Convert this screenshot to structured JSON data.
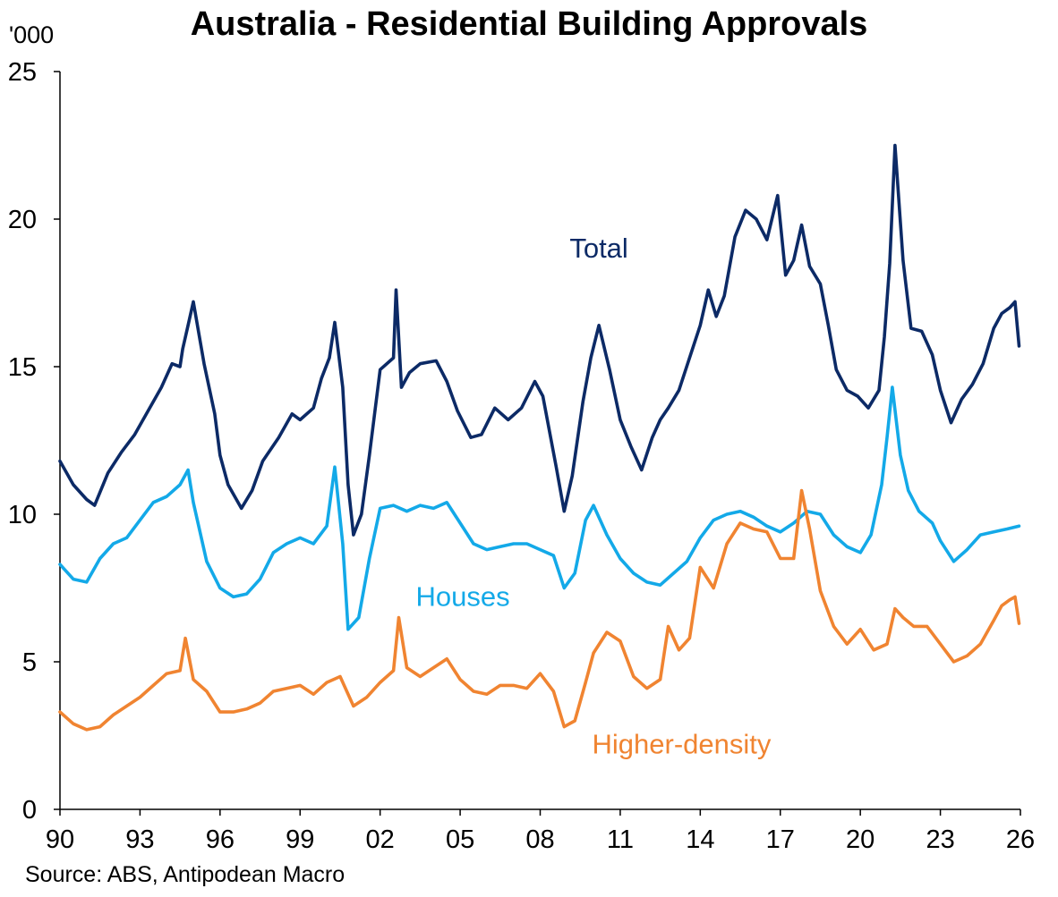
{
  "title": "Australia - Residential Building Approvals",
  "unit_label": "'000",
  "source": "Source: ABS, Antipodean Macro",
  "colors": {
    "Total": "#0c2a66",
    "Houses": "#13a9e8",
    "Higher-density": "#f08431",
    "axis": "#000000"
  },
  "chart_data": {
    "type": "line",
    "title": "Australia - Residential Building Approvals",
    "ylabel": "'000",
    "xlabel": "",
    "ylim": [
      0,
      25
    ],
    "xlim": [
      1990,
      2026
    ],
    "yticks": [
      "0",
      "5",
      "10",
      "15",
      "20",
      "25"
    ],
    "xticks": [
      "90",
      "93",
      "96",
      "99",
      "02",
      "05",
      "08",
      "11",
      "14",
      "17",
      "20",
      "23",
      "26"
    ],
    "series": [
      {
        "name": "Total",
        "x": [
          1990.0,
          1990.5,
          1991.0,
          1991.3,
          1991.8,
          1992.3,
          1992.8,
          1993.3,
          1993.8,
          1994.2,
          1994.5,
          1994.6,
          1994.8,
          1995.0,
          1995.4,
          1995.8,
          1996.0,
          1996.3,
          1996.8,
          1997.2,
          1997.6,
          1998.2,
          1998.7,
          1999.0,
          1999.5,
          1999.8,
          2000.1,
          2000.3,
          2000.6,
          2000.8,
          2001.0,
          2001.3,
          2001.6,
          2002.0,
          2002.5,
          2002.6,
          2002.8,
          2003.1,
          2003.5,
          2004.1,
          2004.5,
          2004.9,
          2005.4,
          2005.8,
          2006.3,
          2006.8,
          2007.3,
          2007.8,
          2008.1,
          2008.6,
          2008.9,
          2009.2,
          2009.6,
          2009.9,
          2010.2,
          2010.6,
          2011.0,
          2011.4,
          2011.8,
          2012.2,
          2012.5,
          2012.8,
          2013.2,
          2013.6,
          2014.0,
          2014.3,
          2014.6,
          2014.9,
          2015.3,
          2015.7,
          2016.1,
          2016.5,
          2016.9,
          2017.2,
          2017.5,
          2017.8,
          2018.1,
          2018.5,
          2018.8,
          2019.1,
          2019.5,
          2019.9,
          2020.3,
          2020.7,
          2020.9,
          2021.1,
          2021.3,
          2021.6,
          2021.9,
          2022.3,
          2022.7,
          2023.0,
          2023.4,
          2023.8,
          2024.2,
          2024.6,
          2025.0,
          2025.3,
          2025.6,
          2025.8,
          2025.95
        ],
        "values": [
          11.8,
          11.0,
          10.5,
          10.3,
          11.4,
          12.1,
          12.7,
          13.5,
          14.3,
          15.1,
          15.0,
          15.6,
          16.4,
          17.2,
          15.1,
          13.4,
          12.0,
          11.0,
          10.2,
          10.8,
          11.8,
          12.6,
          13.4,
          13.2,
          13.6,
          14.6,
          15.3,
          16.5,
          14.3,
          11.0,
          9.3,
          10.0,
          12.0,
          14.9,
          15.3,
          17.6,
          14.3,
          14.8,
          15.1,
          15.2,
          14.5,
          13.5,
          12.6,
          12.7,
          13.6,
          13.2,
          13.6,
          14.5,
          14.0,
          11.6,
          10.1,
          11.3,
          13.8,
          15.3,
          16.4,
          14.9,
          13.2,
          12.3,
          11.5,
          12.6,
          13.2,
          13.6,
          14.2,
          15.3,
          16.4,
          17.6,
          16.7,
          17.4,
          19.4,
          20.3,
          20.0,
          19.3,
          20.8,
          18.1,
          18.6,
          19.8,
          18.4,
          17.8,
          16.4,
          14.9,
          14.2,
          14.0,
          13.6,
          14.2,
          16.0,
          18.5,
          22.5,
          18.6,
          16.3,
          16.2,
          15.4,
          14.2,
          13.1,
          13.9,
          14.4,
          15.1,
          16.3,
          16.8,
          17.0,
          17.2,
          15.7
        ]
      },
      {
        "name": "Houses",
        "x": [
          1990.0,
          1990.5,
          1991.0,
          1991.5,
          1992.0,
          1992.5,
          1993.0,
          1993.5,
          1994.0,
          1994.5,
          1994.8,
          1995.0,
          1995.5,
          1996.0,
          1996.5,
          1997.0,
          1997.5,
          1998.0,
          1998.5,
          1999.0,
          1999.5,
          2000.0,
          2000.3,
          2000.6,
          2000.8,
          2001.2,
          2001.6,
          2002.0,
          2002.5,
          2003.0,
          2003.5,
          2004.0,
          2004.5,
          2005.0,
          2005.5,
          2006.0,
          2006.5,
          2007.0,
          2007.5,
          2008.0,
          2008.5,
          2008.9,
          2009.3,
          2009.7,
          2010.0,
          2010.5,
          2011.0,
          2011.5,
          2012.0,
          2012.5,
          2013.0,
          2013.5,
          2014.0,
          2014.5,
          2015.0,
          2015.5,
          2016.0,
          2016.5,
          2017.0,
          2017.5,
          2018.0,
          2018.5,
          2019.0,
          2019.5,
          2020.0,
          2020.4,
          2020.8,
          2021.0,
          2021.2,
          2021.5,
          2021.8,
          2022.2,
          2022.7,
          2023.0,
          2023.5,
          2024.0,
          2024.5,
          2025.0,
          2025.5,
          2025.95
        ],
        "values": [
          8.3,
          7.8,
          7.7,
          8.5,
          9.0,
          9.2,
          9.8,
          10.4,
          10.6,
          11.0,
          11.5,
          10.4,
          8.4,
          7.5,
          7.2,
          7.3,
          7.8,
          8.7,
          9.0,
          9.2,
          9.0,
          9.6,
          11.6,
          9.0,
          6.1,
          6.5,
          8.5,
          10.2,
          10.3,
          10.1,
          10.3,
          10.2,
          10.4,
          9.7,
          9.0,
          8.8,
          8.9,
          9.0,
          9.0,
          8.8,
          8.6,
          7.5,
          8.0,
          9.8,
          10.3,
          9.3,
          8.5,
          8.0,
          7.7,
          7.6,
          8.0,
          8.4,
          9.2,
          9.8,
          10.0,
          10.1,
          9.9,
          9.6,
          9.4,
          9.7,
          10.1,
          10.0,
          9.3,
          8.9,
          8.7,
          9.3,
          11.0,
          12.6,
          14.3,
          12.0,
          10.8,
          10.1,
          9.7,
          9.1,
          8.4,
          8.8,
          9.3,
          9.4,
          9.5,
          9.6
        ]
      },
      {
        "name": "Higher-density",
        "x": [
          1990.0,
          1990.5,
          1991.0,
          1991.5,
          1992.0,
          1992.5,
          1993.0,
          1993.5,
          1994.0,
          1994.5,
          1994.7,
          1995.0,
          1995.5,
          1996.0,
          1996.5,
          1997.0,
          1997.5,
          1998.0,
          1998.5,
          1999.0,
          1999.5,
          2000.0,
          2000.5,
          2001.0,
          2001.5,
          2002.0,
          2002.5,
          2002.7,
          2003.0,
          2003.5,
          2004.0,
          2004.5,
          2005.0,
          2005.5,
          2006.0,
          2006.5,
          2007.0,
          2007.5,
          2008.0,
          2008.5,
          2008.9,
          2009.3,
          2009.7,
          2010.0,
          2010.5,
          2011.0,
          2011.5,
          2012.0,
          2012.5,
          2012.8,
          2013.2,
          2013.6,
          2014.0,
          2014.5,
          2015.0,
          2015.5,
          2016.0,
          2016.5,
          2017.0,
          2017.5,
          2017.8,
          2018.1,
          2018.5,
          2019.0,
          2019.5,
          2020.0,
          2020.5,
          2021.0,
          2021.3,
          2021.6,
          2022.0,
          2022.5,
          2023.0,
          2023.5,
          2024.0,
          2024.5,
          2025.0,
          2025.3,
          2025.6,
          2025.8,
          2025.95
        ],
        "values": [
          3.3,
          2.9,
          2.7,
          2.8,
          3.2,
          3.5,
          3.8,
          4.2,
          4.6,
          4.7,
          5.8,
          4.4,
          4.0,
          3.3,
          3.3,
          3.4,
          3.6,
          4.0,
          4.1,
          4.2,
          3.9,
          4.3,
          4.5,
          3.5,
          3.8,
          4.3,
          4.7,
          6.5,
          4.8,
          4.5,
          4.8,
          5.1,
          4.4,
          4.0,
          3.9,
          4.2,
          4.2,
          4.1,
          4.6,
          4.0,
          2.8,
          3.0,
          4.3,
          5.3,
          6.0,
          5.7,
          4.5,
          4.1,
          4.4,
          6.2,
          5.4,
          5.8,
          8.2,
          7.5,
          9.0,
          9.7,
          9.5,
          9.4,
          8.5,
          8.5,
          10.8,
          9.5,
          7.4,
          6.2,
          5.6,
          6.1,
          5.4,
          5.6,
          6.8,
          6.5,
          6.2,
          6.2,
          5.6,
          5.0,
          5.2,
          5.6,
          6.4,
          6.9,
          7.1,
          7.2,
          6.3
        ]
      }
    ],
    "labels": [
      {
        "text": "Total",
        "series": "Total",
        "x": 2010.2,
        "y": 18.7
      },
      {
        "text": "Houses",
        "series": "Houses",
        "x": 2005.1,
        "y": 6.9
      },
      {
        "text": "Higher-density",
        "series": "Higher-density",
        "x": 2013.3,
        "y": 1.9
      }
    ]
  }
}
